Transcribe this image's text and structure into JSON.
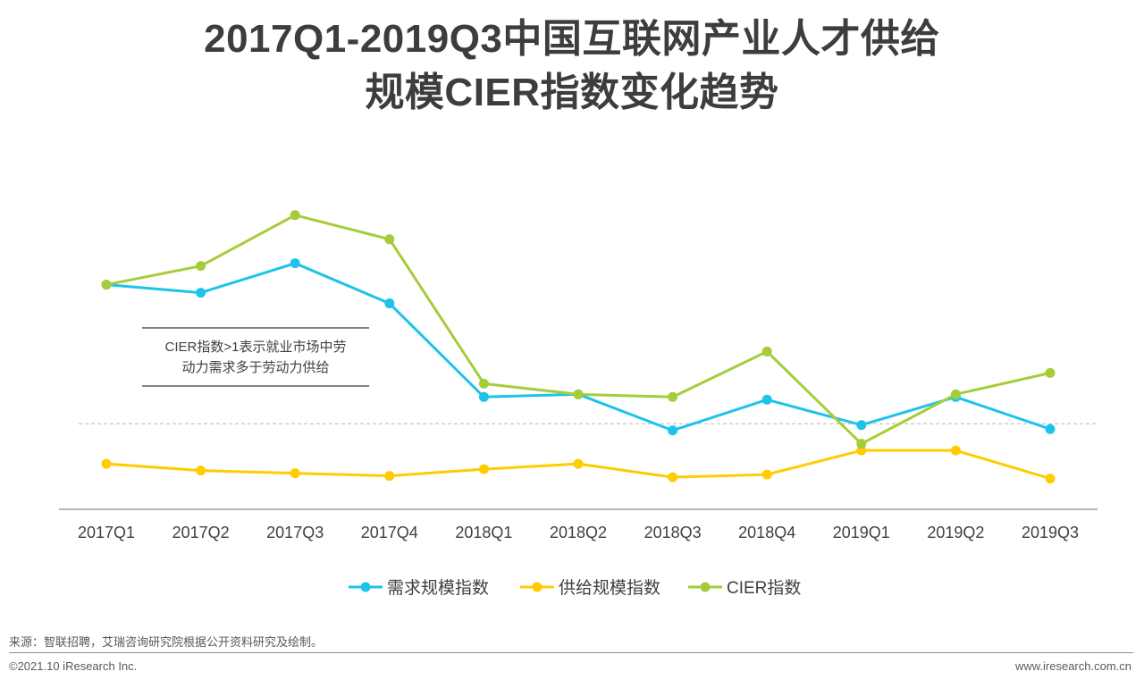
{
  "title": {
    "line1": "2017Q1-2019Q3中国互联网产业人才供给",
    "line2": "规模CIER指数变化趋势"
  },
  "chart_data": {
    "type": "line",
    "categories": [
      "2017Q1",
      "2017Q2",
      "2017Q3",
      "2017Q4",
      "2018Q1",
      "2018Q2",
      "2018Q3",
      "2018Q4",
      "2019Q1",
      "2019Q2",
      "2019Q3"
    ],
    "series": [
      {
        "name": "需求规模指数",
        "color": "#1ec3ea",
        "values": [
          6.2,
          5.9,
          7.0,
          5.5,
          2.0,
          2.1,
          0.75,
          1.9,
          0.95,
          2.0,
          0.8
        ]
      },
      {
        "name": "供给规模指数",
        "color": "#ffcc00",
        "values": [
          -0.5,
          -0.75,
          -0.85,
          -0.95,
          -0.7,
          -0.5,
          -1.0,
          -0.9,
          0.0,
          0.0,
          -1.05
        ]
      },
      {
        "name": "CIER指数",
        "color": "#a5cd39",
        "values": [
          6.2,
          6.9,
          8.8,
          7.9,
          2.5,
          2.1,
          2.0,
          3.7,
          0.25,
          2.1,
          2.9
        ]
      }
    ],
    "reference_line": 1,
    "xlabel": "",
    "ylabel": "",
    "ylim": [
      -2.2,
      11.5
    ],
    "grid": false,
    "legend": "bottom-center",
    "annotation": {
      "line1": "CIER指数>1表示就业市场中劳",
      "line2": "动力需求多于劳动力供给"
    }
  },
  "footer": {
    "source": "来源：智联招聘，艾瑞咨询研究院根据公开资料研究及绘制。",
    "copyright": "©2021.10 iResearch Inc.",
    "website": "www.iresearch.com.cn"
  }
}
